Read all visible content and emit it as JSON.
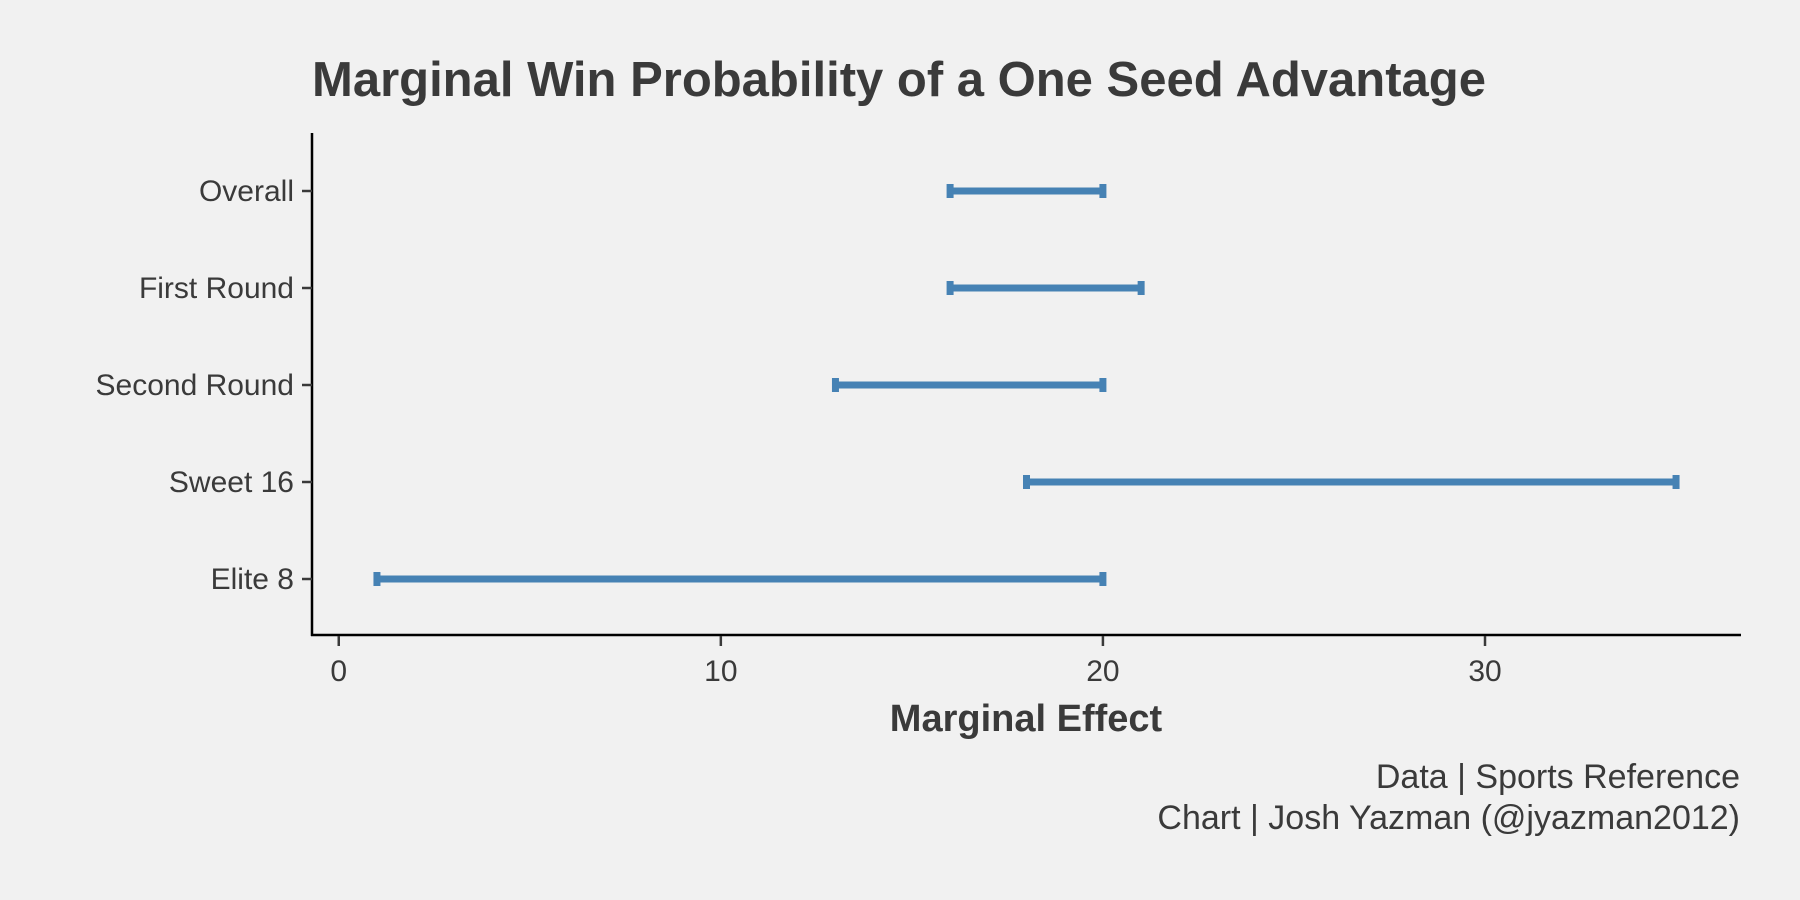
{
  "chart_data": {
    "type": "interval",
    "title": "Marginal Win Probability of a One Seed Advantage",
    "xlabel": "Marginal Effect",
    "ylabel": "",
    "xlim": [
      -0.7,
      36.7
    ],
    "x_ticks": [
      0,
      10,
      20,
      30
    ],
    "x_tick_labels": [
      "0",
      "10",
      "20",
      "30"
    ],
    "categories": [
      "Overall",
      "First Round",
      "Second Round",
      "Sweet 16",
      "Elite 8"
    ],
    "intervals": [
      {
        "category": "Overall",
        "low": 16,
        "high": 20
      },
      {
        "category": "First Round",
        "low": 16,
        "high": 21
      },
      {
        "category": "Second Round",
        "low": 13,
        "high": 20
      },
      {
        "category": "Sweet 16",
        "low": 18,
        "high": 35
      },
      {
        "category": "Elite 8",
        "low": 1,
        "high": 20
      }
    ],
    "grid": false,
    "color": "#4682b4"
  },
  "caption": {
    "line1": "Data | Sports Reference",
    "line2": "Chart | Josh Yazman (@jyazman2012)"
  }
}
